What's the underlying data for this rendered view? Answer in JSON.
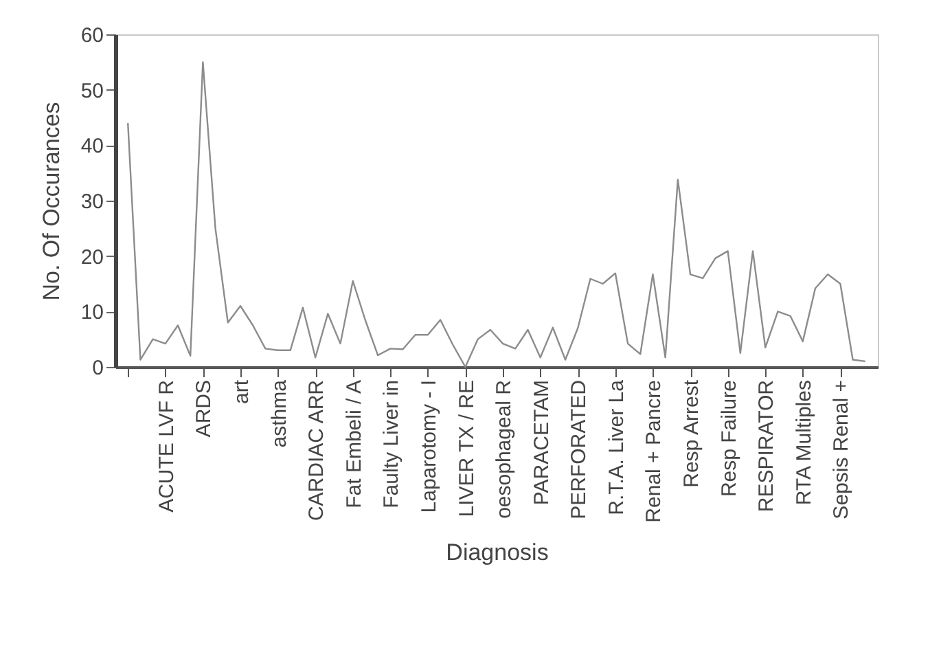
{
  "chart_data": {
    "type": "line",
    "xlabel": "Diagnosis",
    "ylabel": "No. Of Occurances",
    "categories": [
      null,
      null,
      null,
      "ACUTE LVF R",
      null,
      null,
      "ARDS",
      null,
      null,
      "art",
      null,
      null,
      "asthma",
      null,
      null,
      "CARDIAC ARR",
      null,
      null,
      "Fat Embeli / A",
      null,
      null,
      "Faulty Liver in",
      null,
      null,
      "Laparotomy - I",
      null,
      null,
      "LIVER TX / RE",
      null,
      null,
      "oesophageal R",
      null,
      null,
      "PARACETAM",
      null,
      null,
      "PERFORATED",
      null,
      null,
      "R.T.A. Liver La",
      null,
      null,
      "Renal + Pancre",
      null,
      null,
      "Resp Arrest",
      null,
      null,
      "Resp Failure",
      null,
      null,
      "RESPIRATOR",
      null,
      null,
      "RTA Multiples",
      null,
      null,
      "Sepsis Renal +",
      null,
      null
    ],
    "values": [
      44,
      1.3,
      5,
      4.2,
      7.5,
      2,
      55,
      25,
      8,
      11,
      7.5,
      3.3,
      3,
      3,
      10.7,
      1.7,
      9.6,
      4.2,
      15.5,
      8.4,
      2.1,
      3.3,
      3.2,
      5.8,
      5.8,
      8.5,
      4,
      0,
      5,
      6.7,
      4.2,
      3.3,
      6.7,
      1.7,
      7.1,
      1.3,
      7,
      15.9,
      15,
      16.9,
      4.2,
      2.3,
      16.7,
      1.7,
      33.8,
      16.7,
      16,
      19.6,
      20.9,
      2.5,
      20.9,
      3.5,
      10,
      9.2,
      4.6,
      14.2,
      16.7,
      15,
      1.3,
      1
    ],
    "color": "#8c8c8c",
    "ylim": [
      0,
      60
    ],
    "yticks": [
      0,
      10,
      20,
      30,
      40,
      50,
      60
    ],
    "grid": false,
    "marker": "none",
    "line_style": "solid"
  }
}
